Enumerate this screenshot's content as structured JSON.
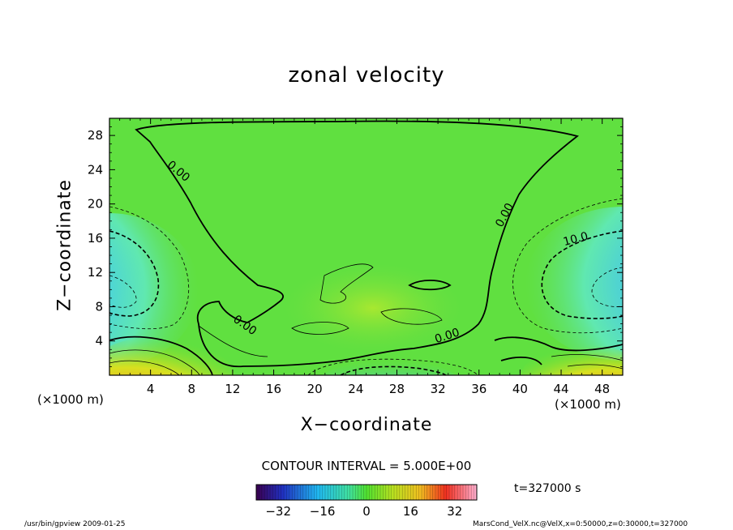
{
  "chart_data": {
    "type": "heatmap",
    "title": "zonal velocity",
    "xlabel": "X−coordinate",
    "ylabel": "Z−coordinate",
    "x_unit": "(×1000 m)",
    "y_unit": "(×1000 m)",
    "xlim": [
      0,
      50
    ],
    "ylim": [
      0,
      30
    ],
    "x_ticks": [
      4,
      8,
      12,
      16,
      20,
      24,
      28,
      32,
      36,
      40,
      44,
      48
    ],
    "y_ticks": [
      4,
      8,
      12,
      16,
      20,
      24,
      28
    ],
    "contour_labels": [
      {
        "text": "0.00",
        "x": 6.5,
        "y": 23.5
      },
      {
        "text": "0.00",
        "x": 38.8,
        "y": 18.5
      },
      {
        "text": "10.0",
        "x": 45.5,
        "y": 15.5
      },
      {
        "text": "0.00",
        "x": 13.0,
        "y": 5.5
      },
      {
        "text": "0.00",
        "x": 33.0,
        "y": 4.2
      }
    ],
    "contour_interval_text": "CONTOUR INTERVAL = 5.000E+00",
    "colorbar": {
      "min": -40,
      "max": 40,
      "ticks": [
        "−32",
        "−16",
        "0",
        "16",
        "32"
      ],
      "tick_values": [
        -32,
        -16,
        0,
        16,
        32
      ]
    },
    "grid": false
  },
  "time_text": "t=327000 s",
  "footer": {
    "left": "/usr/bin/gpview   2009-01-25",
    "right": "MarsCond_VelX.nc@VelX,x=0:50000,z=0:30000,t=327000"
  }
}
